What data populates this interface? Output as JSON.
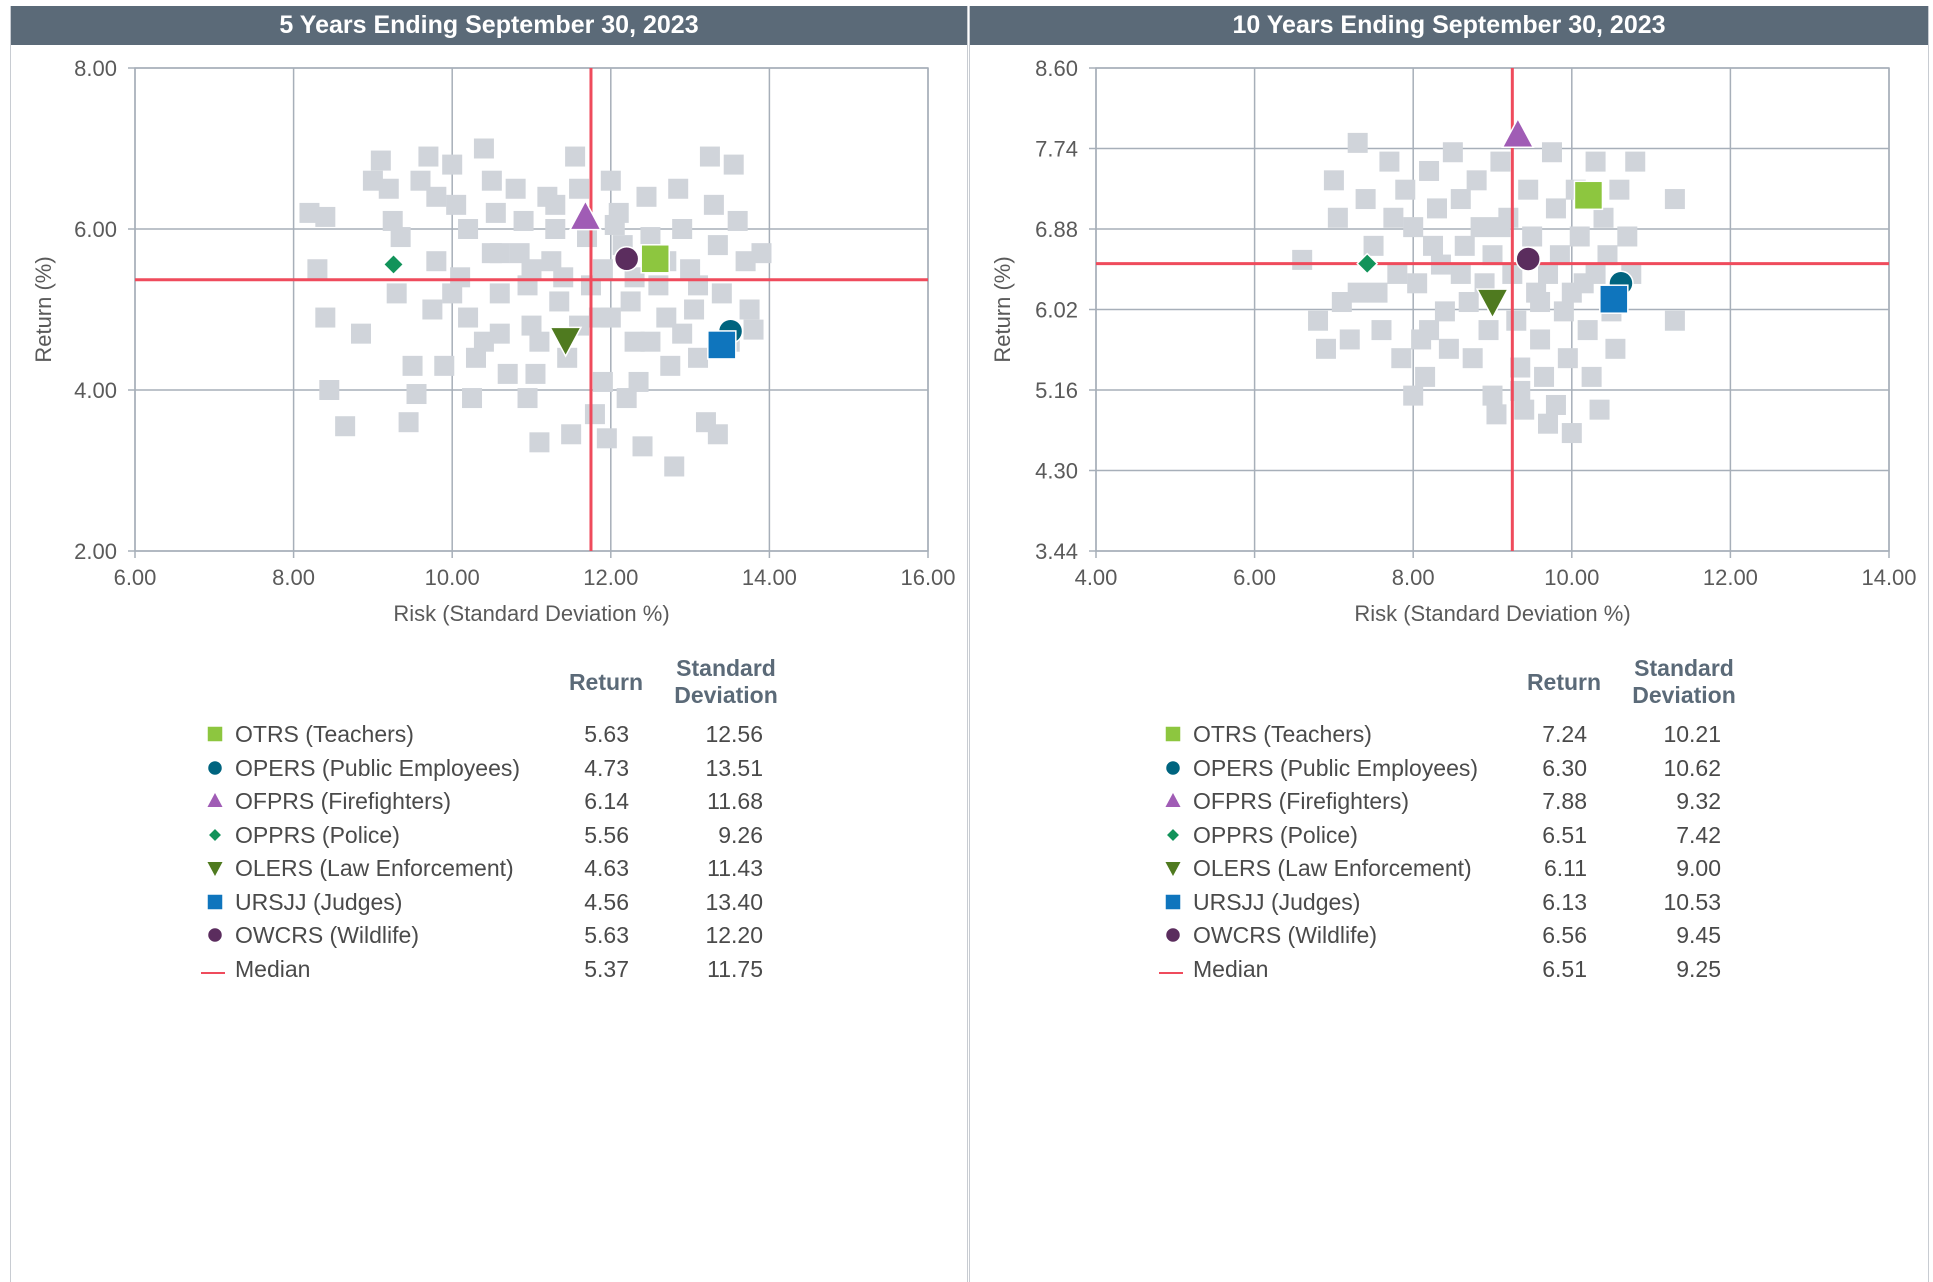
{
  "panels": [
    {
      "title": "5 Years Ending September 30, 2023",
      "legend_headers": {
        "return": "Return",
        "sd_line1": "Standard",
        "sd_line2": "Deviation"
      },
      "legend": [
        {
          "name": "OTRS (Teachers)",
          "return": "5.63",
          "sd": "12.56"
        },
        {
          "name": "OPERS (Public Employees)",
          "return": "4.73",
          "sd": "13.51"
        },
        {
          "name": "OFPRS (Firefighters)",
          "return": "6.14",
          "sd": "11.68"
        },
        {
          "name": "OPPRS (Police)",
          "return": "5.56",
          "sd": "9.26"
        },
        {
          "name": "OLERS (Law Enforcement)",
          "return": "4.63",
          "sd": "11.43"
        },
        {
          "name": "URSJJ (Judges)",
          "return": "4.56",
          "sd": "13.40"
        },
        {
          "name": "OWCRS (Wildlife)",
          "return": "5.63",
          "sd": "12.20"
        },
        {
          "name": "Median",
          "return": "5.37",
          "sd": "11.75"
        }
      ]
    },
    {
      "title": "10 Years Ending September 30, 2023",
      "legend_headers": {
        "return": "Return",
        "sd_line1": "Standard",
        "sd_line2": "Deviation"
      },
      "legend": [
        {
          "name": "OTRS (Teachers)",
          "return": "7.24",
          "sd": "10.21"
        },
        {
          "name": "OPERS (Public Employees)",
          "return": "6.30",
          "sd": "10.62"
        },
        {
          "name": "OFPRS (Firefighters)",
          "return": "7.88",
          "sd": "9.32"
        },
        {
          "name": "OPPRS (Police)",
          "return": "6.51",
          "sd": "7.42"
        },
        {
          "name": "OLERS (Law Enforcement)",
          "return": "6.11",
          "sd": "9.00"
        },
        {
          "name": "URSJJ (Judges)",
          "return": "6.13",
          "sd": "10.53"
        },
        {
          "name": "OWCRS (Wildlife)",
          "return": "6.56",
          "sd": "9.45"
        },
        {
          "name": "Median",
          "return": "6.51",
          "sd": "9.25"
        }
      ]
    }
  ],
  "chart_data": [
    {
      "type": "scatter",
      "title": "5 Years Ending September 30, 2023",
      "xlabel": "Risk (Standard Deviation %)",
      "ylabel": "Return (%)",
      "xlim": [
        6,
        16
      ],
      "ylim": [
        2,
        8
      ],
      "xticks": [
        "6.00",
        "8.00",
        "10.00",
        "12.00",
        "14.00",
        "16.00"
      ],
      "yticks": [
        "2.00",
        "4.00",
        "6.00",
        "8.00"
      ],
      "grid": true,
      "median": {
        "x": 11.75,
        "y": 5.37
      },
      "series": [
        {
          "name": "OTRS (Teachers)",
          "marker": "square",
          "color": "#8dc63f",
          "x": [
            12.56
          ],
          "y": [
            5.63
          ]
        },
        {
          "name": "OPERS (Public Employees)",
          "marker": "circle",
          "color": "#00647f",
          "x": [
            13.51
          ],
          "y": [
            4.73
          ]
        },
        {
          "name": "OFPRS (Firefighters)",
          "marker": "triangle-up",
          "color": "#a05cb5",
          "x": [
            11.68
          ],
          "y": [
            6.14
          ]
        },
        {
          "name": "OPPRS (Police)",
          "marker": "diamond",
          "color": "#12935a",
          "x": [
            9.26
          ],
          "y": [
            5.56
          ]
        },
        {
          "name": "OLERS (Law Enforcement)",
          "marker": "triangle-down",
          "color": "#4f7a1f",
          "x": [
            11.43
          ],
          "y": [
            4.63
          ]
        },
        {
          "name": "URSJJ (Judges)",
          "marker": "square",
          "color": "#0f75bd",
          "x": [
            13.4
          ],
          "y": [
            4.56
          ]
        },
        {
          "name": "OWCRS (Wildlife)",
          "marker": "circle",
          "color": "#5b2d5e",
          "x": [
            12.2
          ],
          "y": [
            5.63
          ]
        }
      ],
      "peer_universe": {
        "color": "#d0d4da",
        "points": [
          [
            8.2,
            6.2
          ],
          [
            8.4,
            6.15
          ],
          [
            8.3,
            5.5
          ],
          [
            8.4,
            4.9
          ],
          [
            8.45,
            4.0
          ],
          [
            8.65,
            3.55
          ],
          [
            8.85,
            4.7
          ],
          [
            9.0,
            6.6
          ],
          [
            9.1,
            6.85
          ],
          [
            9.2,
            6.5
          ],
          [
            9.25,
            6.1
          ],
          [
            9.35,
            5.9
          ],
          [
            9.3,
            5.2
          ],
          [
            9.5,
            4.3
          ],
          [
            9.55,
            3.95
          ],
          [
            9.45,
            3.6
          ],
          [
            9.6,
            6.6
          ],
          [
            9.7,
            6.9
          ],
          [
            9.8,
            6.4
          ],
          [
            9.8,
            5.6
          ],
          [
            9.75,
            5.0
          ],
          [
            9.9,
            4.3
          ],
          [
            10.0,
            6.8
          ],
          [
            10.05,
            6.3
          ],
          [
            10.2,
            6.0
          ],
          [
            10.1,
            5.4
          ],
          [
            10.2,
            4.9
          ],
          [
            10.3,
            4.4
          ],
          [
            10.25,
            3.9
          ],
          [
            10.4,
            7.0
          ],
          [
            10.5,
            6.6
          ],
          [
            10.55,
            6.2
          ],
          [
            10.5,
            5.7
          ],
          [
            10.6,
            5.2
          ],
          [
            10.6,
            4.7
          ],
          [
            10.7,
            4.2
          ],
          [
            10.8,
            6.5
          ],
          [
            10.9,
            6.1
          ],
          [
            10.85,
            5.7
          ],
          [
            10.95,
            5.3
          ],
          [
            11.0,
            4.8
          ],
          [
            11.05,
            4.2
          ],
          [
            10.95,
            3.9
          ],
          [
            11.1,
            3.35
          ],
          [
            11.2,
            6.4
          ],
          [
            11.3,
            6.0
          ],
          [
            11.25,
            5.6
          ],
          [
            11.35,
            5.1
          ],
          [
            11.45,
            4.4
          ],
          [
            11.5,
            3.45
          ],
          [
            11.55,
            6.9
          ],
          [
            11.6,
            6.5
          ],
          [
            11.7,
            5.9
          ],
          [
            11.75,
            5.3
          ],
          [
            11.85,
            4.9
          ],
          [
            11.9,
            4.1
          ],
          [
            11.95,
            3.4
          ],
          [
            12.0,
            6.6
          ],
          [
            12.1,
            6.2
          ],
          [
            12.15,
            5.8
          ],
          [
            12.25,
            5.1
          ],
          [
            12.3,
            4.6
          ],
          [
            12.35,
            4.1
          ],
          [
            12.4,
            3.3
          ],
          [
            12.45,
            6.4
          ],
          [
            12.5,
            5.9
          ],
          [
            12.6,
            5.3
          ],
          [
            12.7,
            4.9
          ],
          [
            12.75,
            4.3
          ],
          [
            12.8,
            3.05
          ],
          [
            12.85,
            6.5
          ],
          [
            12.9,
            6.0
          ],
          [
            13.0,
            5.5
          ],
          [
            13.05,
            5.0
          ],
          [
            13.1,
            4.4
          ],
          [
            13.2,
            3.6
          ],
          [
            13.25,
            6.9
          ],
          [
            13.3,
            6.3
          ],
          [
            13.35,
            5.8
          ],
          [
            13.4,
            5.2
          ],
          [
            13.5,
            4.6
          ],
          [
            13.55,
            6.8
          ],
          [
            13.6,
            6.1
          ],
          [
            13.7,
            5.6
          ],
          [
            13.75,
            5.0
          ],
          [
            13.8,
            4.75
          ],
          [
            13.9,
            5.7
          ],
          [
            13.35,
            3.45
          ],
          [
            10.0,
            5.2
          ],
          [
            10.6,
            5.7
          ],
          [
            11.0,
            5.5
          ],
          [
            11.4,
            5.4
          ],
          [
            11.9,
            5.5
          ],
          [
            12.3,
            5.4
          ],
          [
            12.7,
            5.6
          ],
          [
            13.1,
            5.3
          ],
          [
            11.1,
            4.6
          ],
          [
            11.6,
            4.8
          ],
          [
            12.0,
            4.9
          ],
          [
            12.5,
            4.6
          ],
          [
            12.9,
            4.7
          ],
          [
            10.4,
            4.6
          ],
          [
            11.3,
            6.3
          ],
          [
            12.05,
            6.05
          ],
          [
            12.2,
            3.9
          ],
          [
            11.8,
            3.7
          ]
        ]
      }
    },
    {
      "type": "scatter",
      "title": "10 Years Ending September 30, 2023",
      "xlabel": "Risk (Standard Deviation %)",
      "ylabel": "Return (%)",
      "xlim": [
        4,
        14
      ],
      "ylim": [
        3.44,
        8.6
      ],
      "xticks": [
        "4.00",
        "6.00",
        "8.00",
        "10.00",
        "12.00",
        "14.00"
      ],
      "yticks": [
        "3.44",
        "4.30",
        "5.16",
        "6.02",
        "6.88",
        "7.74",
        "8.60"
      ],
      "grid": true,
      "median": {
        "x": 9.25,
        "y": 6.51
      },
      "series": [
        {
          "name": "OTRS (Teachers)",
          "marker": "square",
          "color": "#8dc63f",
          "x": [
            10.21
          ],
          "y": [
            7.24
          ]
        },
        {
          "name": "OPERS (Public Employees)",
          "marker": "circle",
          "color": "#00647f",
          "x": [
            10.62
          ],
          "y": [
            6.3
          ]
        },
        {
          "name": "OFPRS (Firefighters)",
          "marker": "triangle-up",
          "color": "#a05cb5",
          "x": [
            9.32
          ],
          "y": [
            7.88
          ]
        },
        {
          "name": "OPPRS (Police)",
          "marker": "diamond",
          "color": "#12935a",
          "x": [
            7.42
          ],
          "y": [
            6.51
          ]
        },
        {
          "name": "OLERS (Law Enforcement)",
          "marker": "triangle-down",
          "color": "#4f7a1f",
          "x": [
            9.0
          ],
          "y": [
            6.11
          ]
        },
        {
          "name": "URSJJ (Judges)",
          "marker": "square",
          "color": "#0f75bd",
          "x": [
            10.53
          ],
          "y": [
            6.13
          ]
        },
        {
          "name": "OWCRS (Wildlife)",
          "marker": "circle",
          "color": "#5b2d5e",
          "x": [
            9.45
          ],
          "y": [
            6.56
          ]
        }
      ],
      "peer_universe": {
        "color": "#d0d4da",
        "points": [
          [
            6.6,
            6.55
          ],
          [
            6.8,
            5.9
          ],
          [
            6.9,
            5.6
          ],
          [
            7.0,
            7.4
          ],
          [
            7.05,
            7.0
          ],
          [
            7.1,
            6.1
          ],
          [
            7.2,
            5.7
          ],
          [
            7.3,
            7.8
          ],
          [
            7.4,
            7.2
          ],
          [
            7.5,
            6.7
          ],
          [
            7.55,
            6.2
          ],
          [
            7.6,
            5.8
          ],
          [
            7.7,
            7.6
          ],
          [
            7.75,
            7.0
          ],
          [
            7.8,
            6.4
          ],
          [
            7.85,
            5.5
          ],
          [
            7.9,
            7.3
          ],
          [
            8.0,
            6.9
          ],
          [
            8.05,
            6.3
          ],
          [
            8.1,
            5.7
          ],
          [
            8.15,
            5.3
          ],
          [
            8.2,
            7.5
          ],
          [
            8.3,
            7.1
          ],
          [
            8.35,
            6.5
          ],
          [
            8.4,
            6.0
          ],
          [
            8.45,
            5.6
          ],
          [
            8.5,
            7.7
          ],
          [
            8.6,
            7.2
          ],
          [
            8.65,
            6.7
          ],
          [
            8.7,
            6.1
          ],
          [
            8.75,
            5.5
          ],
          [
            8.8,
            7.4
          ],
          [
            8.85,
            6.9
          ],
          [
            8.9,
            6.3
          ],
          [
            8.95,
            5.8
          ],
          [
            9.0,
            5.1
          ],
          [
            9.05,
            4.9
          ],
          [
            9.1,
            7.6
          ],
          [
            9.2,
            7.0
          ],
          [
            9.25,
            6.4
          ],
          [
            9.3,
            5.9
          ],
          [
            9.35,
            5.4
          ],
          [
            9.4,
            4.95
          ],
          [
            9.45,
            7.3
          ],
          [
            9.5,
            6.8
          ],
          [
            9.55,
            6.2
          ],
          [
            9.6,
            5.7
          ],
          [
            9.65,
            5.3
          ],
          [
            9.7,
            4.8
          ],
          [
            9.75,
            7.7
          ],
          [
            9.8,
            7.1
          ],
          [
            9.85,
            6.6
          ],
          [
            9.9,
            6.0
          ],
          [
            9.95,
            5.5
          ],
          [
            10.0,
            4.7
          ],
          [
            10.05,
            7.3
          ],
          [
            10.1,
            6.8
          ],
          [
            10.15,
            6.3
          ],
          [
            10.2,
            5.8
          ],
          [
            10.25,
            5.3
          ],
          [
            10.3,
            7.6
          ],
          [
            10.4,
            7.0
          ],
          [
            10.45,
            6.6
          ],
          [
            10.5,
            6.0
          ],
          [
            10.55,
            5.6
          ],
          [
            10.6,
            7.3
          ],
          [
            10.7,
            6.8
          ],
          [
            10.75,
            6.4
          ],
          [
            10.8,
            7.6
          ],
          [
            11.3,
            7.2
          ],
          [
            11.3,
            5.9
          ],
          [
            10.35,
            4.95
          ],
          [
            9.35,
            5.15
          ],
          [
            9.8,
            5.0
          ],
          [
            8.0,
            5.1
          ],
          [
            7.3,
            6.2
          ],
          [
            8.6,
            6.4
          ],
          [
            9.1,
            6.9
          ],
          [
            9.7,
            6.4
          ],
          [
            10.0,
            6.2
          ],
          [
            8.25,
            6.7
          ],
          [
            9.0,
            6.6
          ],
          [
            8.2,
            5.8
          ],
          [
            9.6,
            6.1
          ],
          [
            10.3,
            6.4
          ]
        ]
      }
    }
  ]
}
